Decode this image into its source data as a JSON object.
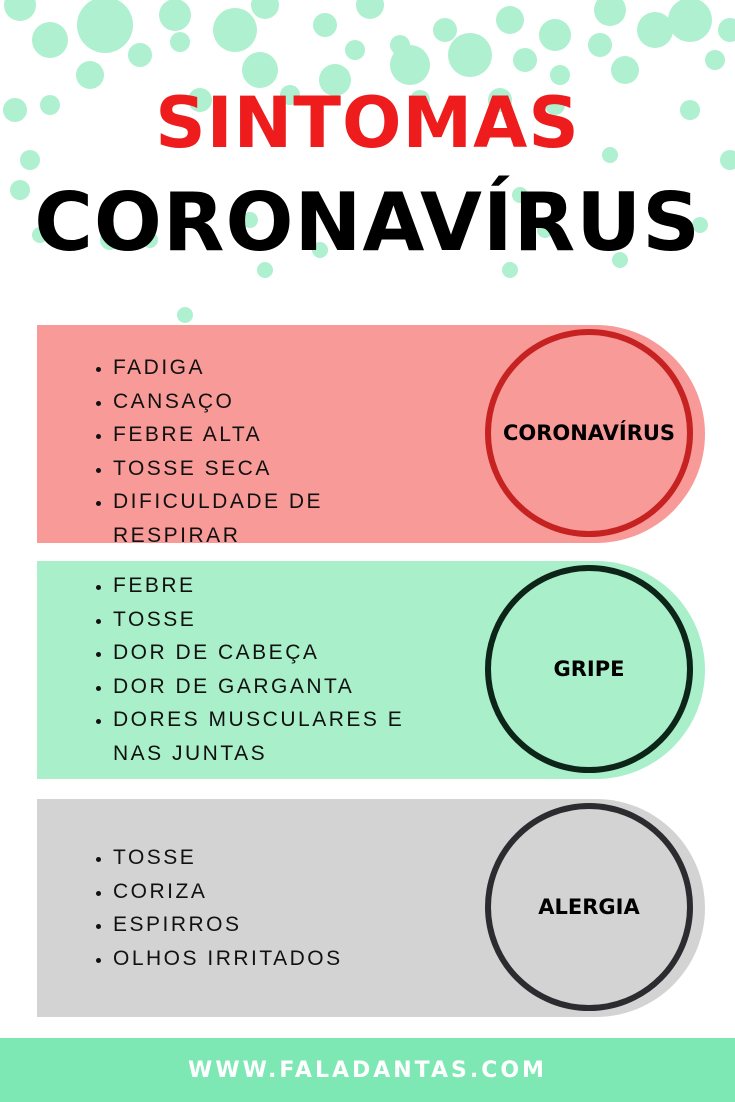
{
  "header": {
    "line1": "SINTOMAS",
    "line2": "CORONAVÍRUS"
  },
  "colors": {
    "bubble": "#aef0d0",
    "title_red": "#ee1c1c",
    "corona_panel": "#f79a98",
    "corona_ring": "#c62222",
    "gripe_panel": "#a8efca",
    "gripe_ring": "#0d2418",
    "alergia_panel": "#d3d3d3",
    "alergia_ring": "#2b2b30",
    "footer": "#7ee8b5"
  },
  "panels": [
    {
      "label": "CORONAVÍRUS",
      "symptoms": [
        "FADIGA",
        "CANSAÇO",
        "FEBRE ALTA",
        "TOSSE SECA",
        "DIFICULDADE DE RESPIRAR"
      ]
    },
    {
      "label": "GRIPE",
      "symptoms": [
        "FEBRE",
        "TOSSE",
        "DOR DE CABEÇA",
        "DOR DE GARGANTA",
        "DORES MUSCULARES E NAS JUNTAS"
      ]
    },
    {
      "label": "ALERGIA",
      "symptoms": [
        "TOSSE",
        "CORIZA",
        "ESPIRROS",
        "OLHOS IRRITADOS"
      ]
    }
  ],
  "footer": {
    "url": "WWW.FALADANTAS.COM"
  }
}
